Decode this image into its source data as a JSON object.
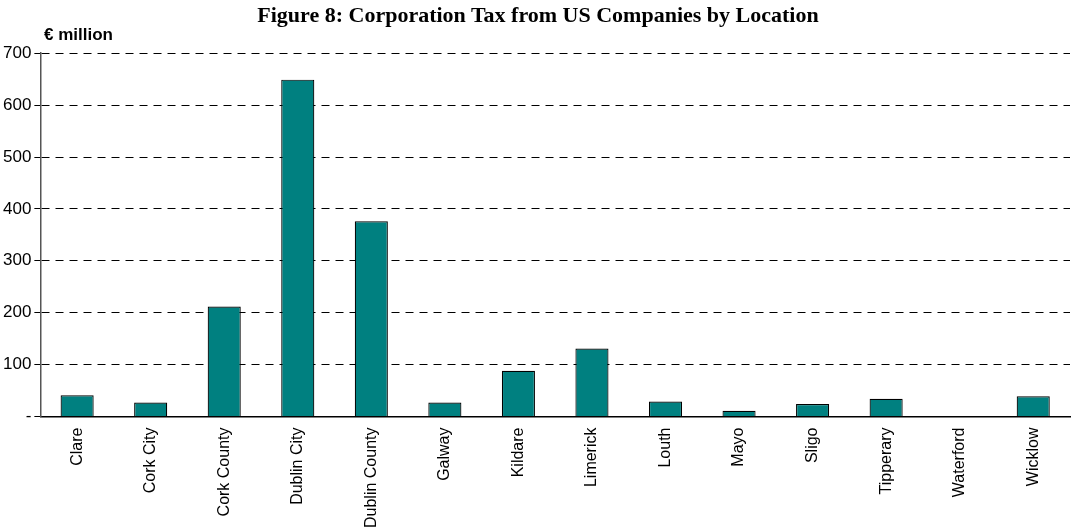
{
  "chart_data": {
    "type": "bar",
    "title": "Figure 8: Corporation Tax from US Companies by Location",
    "ylabel": "€ million",
    "categories": [
      "Clare",
      "Cork City",
      "Cork County",
      "Dublin City",
      "Dublin County",
      "Galway",
      "Kildare",
      "Limerick",
      "Louth",
      "Mayo",
      "Sligo",
      "Tipperary",
      "Waterford",
      "Wicklow"
    ],
    "values": [
      41,
      27,
      212,
      649,
      376,
      27,
      88,
      131,
      29,
      11,
      24,
      34,
      0,
      39
    ],
    "color": "#008080",
    "ylim": [
      0,
      700
    ],
    "yticks": [
      {
        "value": 0,
        "label": "-"
      },
      100,
      200,
      300,
      400,
      500,
      600,
      700
    ],
    "grid": "y",
    "legend": false
  }
}
